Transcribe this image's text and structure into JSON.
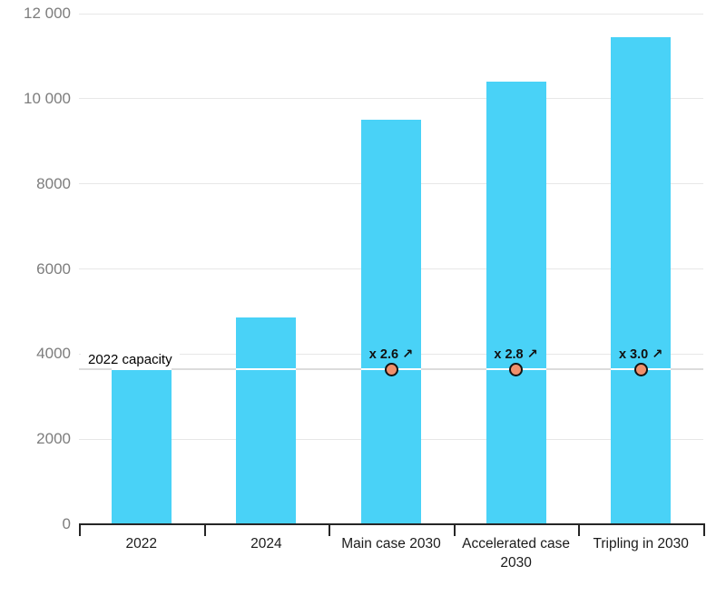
{
  "chart_data": {
    "type": "bar",
    "title": "",
    "xlabel": "",
    "ylabel": "",
    "categories": [
      "2022",
      "2024",
      "Main case 2030",
      "Accelerated case 2030",
      "Tripling in 2030"
    ],
    "values": [
      3650,
      4850,
      9500,
      10400,
      11450
    ],
    "ylim": [
      0,
      12000
    ],
    "ytick_values": [
      0,
      2000,
      4000,
      6000,
      8000,
      10000,
      12000
    ],
    "ytick_labels": [
      "0",
      "2000",
      "4000",
      "6000",
      "8000",
      "10 000",
      "12 000"
    ],
    "grid": true,
    "legend_position": "none",
    "reference_line": {
      "value": 3650,
      "label": "2022 capacity"
    },
    "annotations": [
      {
        "category": "Main case 2030",
        "text": "x 2.6",
        "arrow": "↗",
        "at_value": 3650
      },
      {
        "category": "Accelerated case 2030",
        "text": "x 2.8",
        "arrow": "↗",
        "at_value": 3650
      },
      {
        "category": "Tripling in 2030",
        "text": "x 3.0",
        "arrow": "↗",
        "at_value": 3650
      }
    ]
  },
  "colors": {
    "bar": "#49D2F7",
    "grid_line": "#E7E7E7",
    "reference_line": "#DCDCDC",
    "reference_line_on_bar": "#FFFFFF",
    "dot_fill": "#F0906C",
    "dot_border": "#131313",
    "axis_line": "#262626",
    "y_label_text": "#7D7D7D",
    "x_label_text": "#1B1B1B",
    "annotation_text": "#111111"
  }
}
